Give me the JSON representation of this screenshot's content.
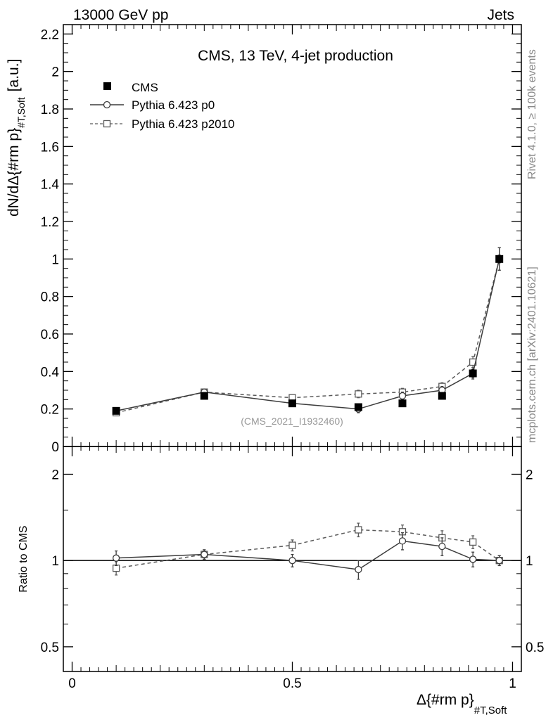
{
  "header": {
    "energy_label": "13000 GeV pp",
    "process_label": "Jets"
  },
  "side_labels": {
    "rivet": "Rivet 4.1.0, ≥ 100k events",
    "mcplots": "mcplots.cern.ch [arXiv:2401.10621]"
  },
  "chart_data": [
    {
      "type": "scatter",
      "panel": "main",
      "title": "CMS, 13 TeV, 4-jet production",
      "watermark": "(CMS_2021_I1932460)",
      "ylabel_main": "dN/dΔ{#rm p}",
      "ylabel_sub": "#T,Soft",
      "ylabel_unit": "[a.u.]",
      "ylim": [
        0,
        2.25
      ],
      "yticks": [
        {
          "v": 0,
          "label": "0"
        },
        {
          "v": 0.2,
          "label": "0.2"
        },
        {
          "v": 0.4,
          "label": "0.4"
        },
        {
          "v": 0.6,
          "label": "0.6"
        },
        {
          "v": 0.8,
          "label": "0.8"
        },
        {
          "v": 1,
          "label": "1"
        },
        {
          "v": 1.2,
          "label": "1.2"
        },
        {
          "v": 1.4,
          "label": "1.4"
        },
        {
          "v": 1.6,
          "label": "1.6"
        },
        {
          "v": 1.8,
          "label": "1.8"
        },
        {
          "v": 2,
          "label": "2"
        },
        {
          "v": 2.2,
          "label": "2.2"
        }
      ],
      "xlim": [
        -0.02,
        1.02
      ],
      "x": [
        0.1,
        0.3,
        0.5,
        0.65,
        0.75,
        0.84,
        0.91,
        0.97
      ],
      "series": [
        {
          "name": "CMS",
          "style": "data",
          "color": "#000000",
          "values": [
            0.19,
            0.27,
            0.23,
            0.21,
            0.23,
            0.27,
            0.39,
            1.0
          ],
          "errors": [
            0.01,
            0.01,
            0.01,
            0.01,
            0.01,
            0.01,
            0.02,
            0.02
          ]
        },
        {
          "name": "Pythia 6.423 p0",
          "style": "circle-solid",
          "color": "#3c3c3c",
          "values": [
            0.19,
            0.29,
            0.23,
            0.2,
            0.27,
            0.3,
            0.39,
            1.0
          ],
          "errors": [
            0.01,
            0.01,
            0.01,
            0.02,
            0.02,
            0.02,
            0.03,
            0.06
          ]
        },
        {
          "name": "Pythia 6.423 p2010",
          "style": "square-dashed",
          "color": "#5a5a5a",
          "values": [
            0.18,
            0.29,
            0.26,
            0.28,
            0.29,
            0.32,
            0.45,
            1.0
          ],
          "errors": [
            0.01,
            0.01,
            0.01,
            0.02,
            0.02,
            0.02,
            0.03,
            0.06
          ]
        }
      ]
    },
    {
      "type": "scatter",
      "panel": "ratio",
      "ylabel": "Ratio to CMS",
      "yscale": "log",
      "ylim": [
        0.41,
        2.5
      ],
      "yticks": [
        {
          "v": 0.5,
          "label": "0.5"
        },
        {
          "v": 1,
          "label": "1"
        },
        {
          "v": 2,
          "label": "2"
        }
      ],
      "xlabel_main": "Δ{#rm p}",
      "xlabel_sub": "#T,Soft",
      "xlim": [
        -0.02,
        1.02
      ],
      "xticks": [
        {
          "v": 0,
          "label": "0"
        },
        {
          "v": 0.5,
          "label": "0.5"
        },
        {
          "v": 1,
          "label": "1"
        }
      ],
      "x": [
        0.1,
        0.3,
        0.5,
        0.65,
        0.75,
        0.84,
        0.91,
        0.97
      ],
      "series": [
        {
          "name": "Pythia 6.423 p0",
          "style": "circle-solid",
          "color": "#3c3c3c",
          "values": [
            1.02,
            1.05,
            1.0,
            0.93,
            1.17,
            1.12,
            1.01,
            1.0
          ],
          "errors": [
            0.06,
            0.04,
            0.05,
            0.07,
            0.08,
            0.08,
            0.06,
            0.04
          ]
        },
        {
          "name": "Pythia 6.423 p2010",
          "style": "square-dashed",
          "color": "#5a5a5a",
          "values": [
            0.94,
            1.05,
            1.13,
            1.28,
            1.26,
            1.2,
            1.16,
            1.0
          ],
          "errors": [
            0.05,
            0.04,
            0.05,
            0.07,
            0.07,
            0.07,
            0.06,
            0.04
          ]
        }
      ]
    }
  ]
}
